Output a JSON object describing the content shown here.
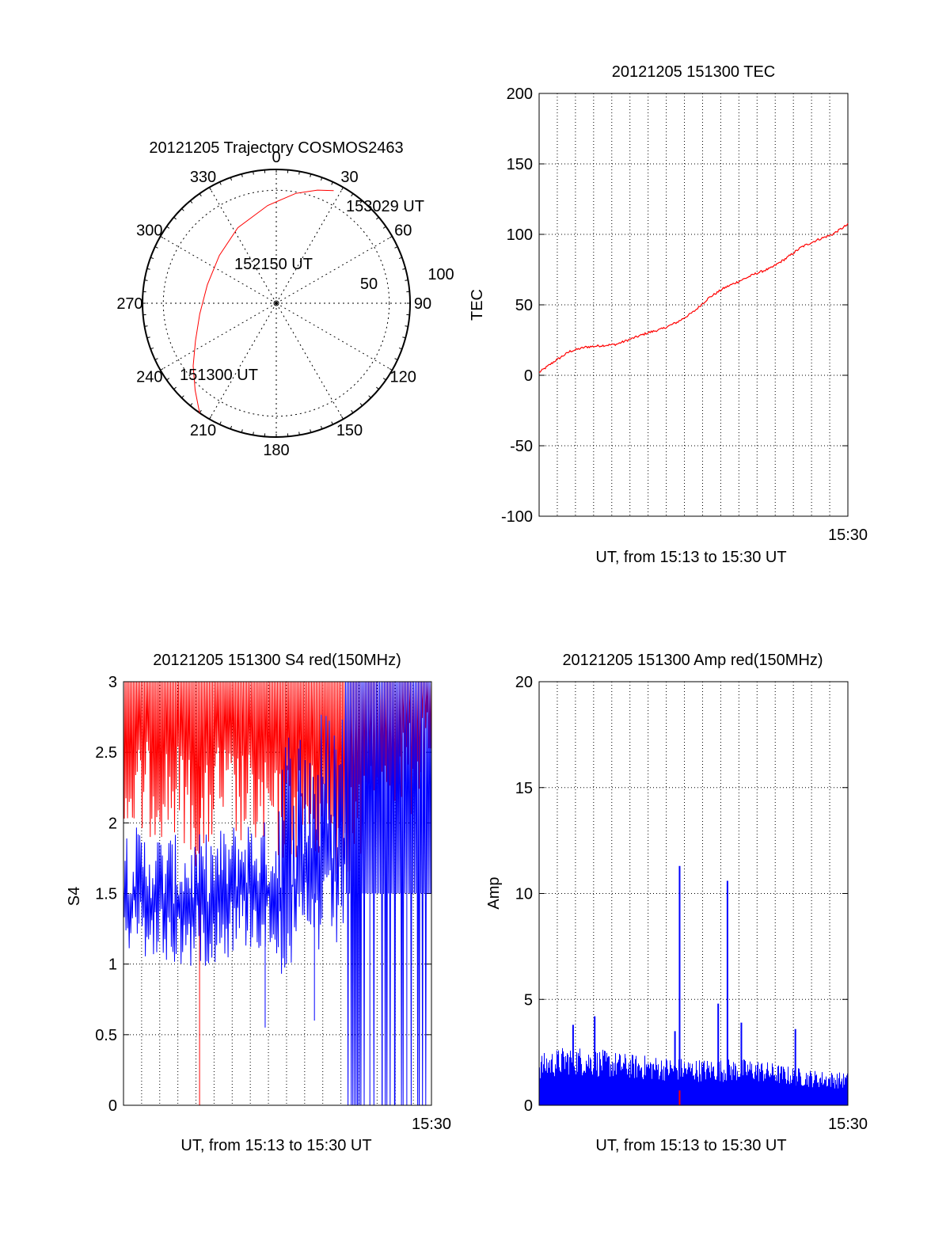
{
  "colors": {
    "red": "#ff0000",
    "blue": "#0000ff",
    "axis": "#000000",
    "grid": "#000000"
  },
  "chart_data": [
    {
      "type": "polar",
      "title": "20121205 Trajectory COSMOS2463",
      "azimuth_labels": [
        "0",
        "30",
        "60",
        "90",
        "120",
        "150",
        "180",
        "210",
        "240",
        "270",
        "300",
        "330"
      ],
      "radial_labels": [
        "50",
        "100"
      ],
      "elevation_rings_deg": [
        0,
        50,
        90
      ],
      "track": {
        "start_label": "151300 UT",
        "start_az": 215,
        "start_el": 0,
        "mid_label": "152150 UT",
        "end_label": "153029 UT",
        "end_az": 27,
        "end_el": 5,
        "points": [
          [
            215,
            0
          ],
          [
            223,
            10
          ],
          [
            233,
            20
          ],
          [
            245,
            30
          ],
          [
            262,
            38
          ],
          [
            285,
            42
          ],
          [
            310,
            40
          ],
          [
            333,
            33
          ],
          [
            355,
            24
          ],
          [
            10,
            15
          ],
          [
            20,
            9
          ],
          [
            27,
            5
          ]
        ]
      }
    },
    {
      "type": "line",
      "title": "20121205 151300 TEC",
      "ylabel": "TEC",
      "xlabel": "UT, from 15:13 to 15:30 UT",
      "x_end_label": "15:30",
      "ylim": [
        -100,
        200
      ],
      "yticks": [
        "-100",
        "-50",
        "0",
        "50",
        "100",
        "150",
        "200"
      ],
      "series": [
        {
          "name": "TEC",
          "color": "red",
          "x": [
            0,
            0.05,
            0.1,
            0.15,
            0.2,
            0.25,
            0.3,
            0.35,
            0.4,
            0.45,
            0.5,
            0.55,
            0.6,
            0.65,
            0.7,
            0.75,
            0.8,
            0.85,
            0.9,
            0.95,
            1.0
          ],
          "values": [
            2,
            10,
            17,
            20,
            21,
            22,
            26,
            30,
            33,
            38,
            45,
            55,
            62,
            67,
            72,
            76,
            83,
            91,
            96,
            100,
            107
          ]
        }
      ]
    },
    {
      "type": "line",
      "title": "20121205 151300 S4 red(150MHz)",
      "ylabel": "S4",
      "xlabel": "UT, from 15:13 to 15:30 UT",
      "x_end_label": "15:30",
      "ylim": [
        0,
        3
      ],
      "yticks": [
        "0",
        "0.5",
        "1",
        "1.5",
        "2",
        "2.5",
        "3"
      ],
      "series": [
        {
          "name": "S4 red",
          "color": "red",
          "x": [
            0,
            0.1,
            0.2,
            0.25,
            0.3,
            0.4,
            0.5,
            0.6,
            0.7,
            0.8,
            0.9,
            1.0
          ],
          "values": [
            2.5,
            2.6,
            2.55,
            2.3,
            2.6,
            2.5,
            2.4,
            2.45,
            2.3,
            2.4,
            2.7,
            2.8
          ],
          "drop_x": 0.247,
          "drop_value": 0
        },
        {
          "name": "S4 blue",
          "color": "blue",
          "x": [
            0,
            0.1,
            0.2,
            0.3,
            0.4,
            0.5,
            0.6,
            0.7,
            0.8,
            0.9,
            1.0
          ],
          "values": [
            1.5,
            1.45,
            1.4,
            1.45,
            1.55,
            1.5,
            1.6,
            1.7,
            1.9,
            2.1,
            2.2
          ],
          "dips": [
            [
              0.46,
              0.55
            ],
            [
              0.62,
              0.6
            ],
            [
              0.76,
              0
            ],
            [
              0.8,
              0
            ],
            [
              0.84,
              0
            ],
            [
              0.88,
              0
            ],
            [
              0.92,
              0
            ],
            [
              0.96,
              0
            ]
          ]
        }
      ]
    },
    {
      "type": "line",
      "title": "20121205 151300 Amp red(150MHz)",
      "ylabel": "Amp",
      "xlabel": "UT, from 15:13 to 15:30 UT",
      "x_end_label": "15:30",
      "ylim": [
        0,
        20
      ],
      "yticks": [
        "0",
        "5",
        "10",
        "15",
        "20"
      ],
      "series": [
        {
          "name": "Amp",
          "color": "blue",
          "x": [
            0,
            0.1,
            0.2,
            0.3,
            0.4,
            0.5,
            0.6,
            0.7,
            0.8,
            0.9,
            1.0
          ],
          "values": [
            2.2,
            2.6,
            2.4,
            2.2,
            2.1,
            2.0,
            2.0,
            2.0,
            1.7,
            1.5,
            1.4
          ],
          "spikes": [
            [
              0.11,
              3.8
            ],
            [
              0.18,
              4.2
            ],
            [
              0.44,
              3.5
            ],
            [
              0.455,
              11.3
            ],
            [
              0.58,
              4.8
            ],
            [
              0.61,
              10.6
            ],
            [
              0.655,
              3.9
            ],
            [
              0.83,
              3.6
            ]
          ]
        }
      ],
      "marker": {
        "color": "red",
        "x": 0.455,
        "value": 0.7
      }
    }
  ]
}
